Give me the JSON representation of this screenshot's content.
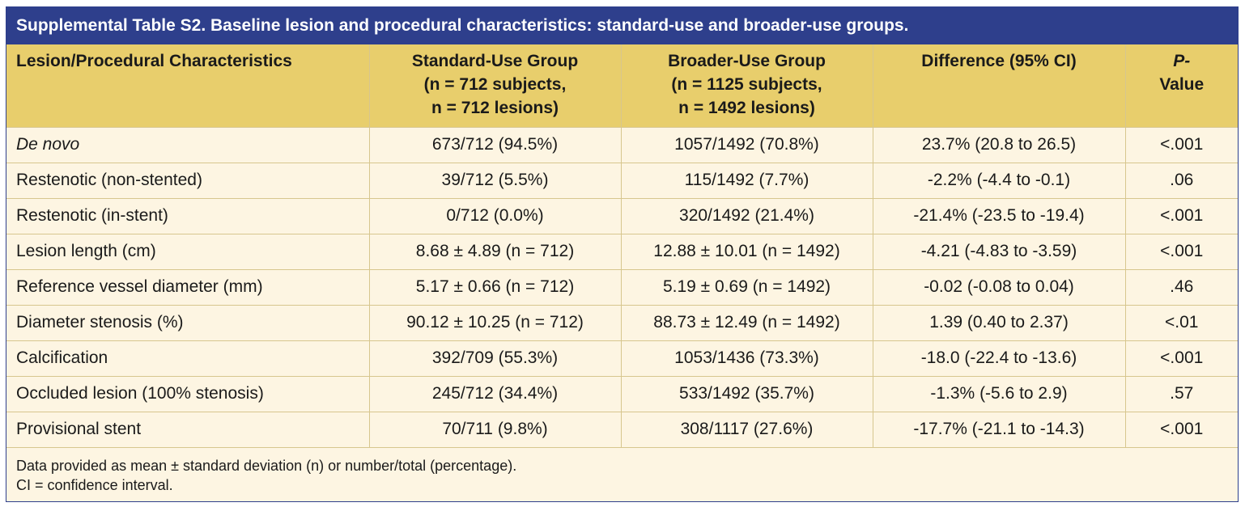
{
  "title": "Supplemental Table S2. Baseline lesion and procedural characteristics: standard-use and broader-use groups.",
  "headers": {
    "characteristics": "Lesion/Procedural Characteristics",
    "standard": [
      "Standard-Use Group",
      "(n = 712 subjects,",
      "n = 712 lesions)"
    ],
    "broader": [
      "Broader-Use Group",
      "(n = 1125 subjects,",
      "n = 1492 lesions)"
    ],
    "difference": "Difference (95% CI)",
    "pvalue": [
      "P-",
      "Value"
    ]
  },
  "rows": [
    {
      "label": "De novo",
      "standard": "673/712 (94.5%)",
      "broader": "1057/1492 (70.8%)",
      "difference": "23.7% (20.8 to 26.5)",
      "p": "<.001"
    },
    {
      "label": "Restenotic (non-stented)",
      "standard": "39/712 (5.5%)",
      "broader": "115/1492 (7.7%)",
      "difference": "-2.2% (-4.4 to -0.1)",
      "p": ".06"
    },
    {
      "label": "Restenotic (in-stent)",
      "standard": "0/712 (0.0%)",
      "broader": "320/1492 (21.4%)",
      "difference": "-21.4%  (-23.5 to -19.4)",
      "p": "<.001"
    },
    {
      "label": "Lesion length (cm)",
      "standard": "8.68 ± 4.89 (n = 712)",
      "broader": "12.88 ± 10.01 (n = 1492)",
      "difference": "-4.21 (-4.83 to -3.59)",
      "p": "<.001"
    },
    {
      "label": "Reference vessel diameter (mm)",
      "standard": "5.17 ± 0.66 (n = 712)",
      "broader": "5.19 ± 0.69 (n = 1492)",
      "difference": "-0.02 (-0.08 to 0.04)",
      "p": ".46"
    },
    {
      "label": "Diameter stenosis (%)",
      "standard": "90.12 ± 10.25 (n = 712)",
      "broader": "88.73 ± 12.49 (n = 1492)",
      "difference": "1.39 (0.40 to 2.37)",
      "p": "<.01"
    },
    {
      "label": "Calcification",
      "standard": "392/709 (55.3%)",
      "broader": "1053/1436 (73.3%)",
      "difference": "-18.0 (-22.4 to -13.6)",
      "p": "<.001"
    },
    {
      "label": "Occluded lesion (100% stenosis)",
      "standard": "245/712 (34.4%)",
      "broader": "533/1492 (35.7%)",
      "difference": "-1.3% (-5.6 to 2.9)",
      "p": ".57"
    },
    {
      "label": "Provisional stent",
      "standard": "70/711 (9.8%)",
      "broader": "308/1117 (27.6%)",
      "difference": "-17.7% (-21.1 to -14.3)",
      "p": "<.001"
    }
  ],
  "footnotes": [
    "Data provided as mean ± standard deviation (n) or number/total (percentage).",
    "CI = confidence interval."
  ],
  "colors": {
    "title_bg": "#2e3f8c",
    "header_bg": "#e8ce6c",
    "body_bg": "#fdf5e2",
    "grid": "#d7c68e"
  }
}
